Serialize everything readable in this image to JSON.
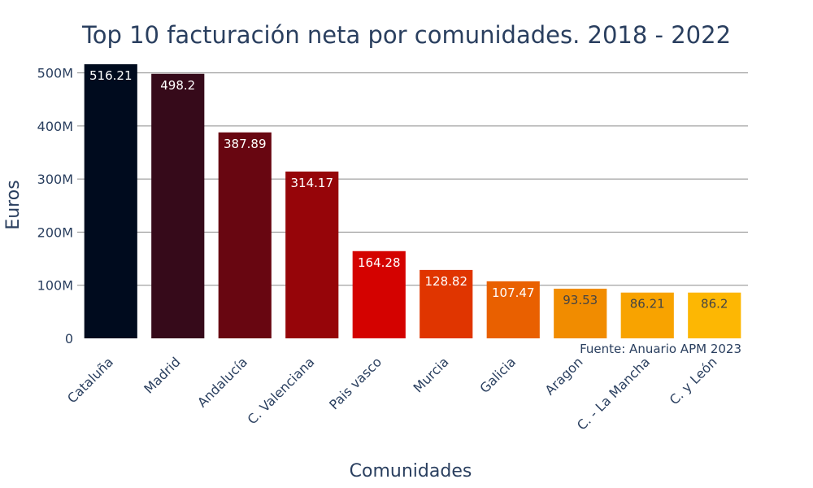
{
  "chart_data": {
    "type": "bar",
    "title": "Top 10 facturación neta por comunidades. 2018 - 2022",
    "xlabel": "Comunidades",
    "ylabel": "Euros",
    "categories": [
      "Cataluña",
      "Madrid",
      "Andalucía",
      "C. Valenciana",
      "Pais vasco",
      "Murcia",
      "Galicia",
      "Aragon",
      "C. - La Mancha",
      "C. y León"
    ],
    "values": [
      516.21,
      498.2,
      387.89,
      314.17,
      164.28,
      128.82,
      107.47,
      93.53,
      86.21,
      86.2
    ],
    "value_labels": [
      "516.21",
      "498.2",
      "387.89",
      "314.17",
      "164.28",
      "128.82",
      "107.47",
      "93.53",
      "86.21",
      "86.2"
    ],
    "colors": [
      "#000b1e",
      "#360a1a",
      "#680611",
      "#960509",
      "#d40200",
      "#e03500",
      "#e96000",
      "#f18c00",
      "#f8a300",
      "#fdb703"
    ],
    "value_label_colors": [
      "#ffffff",
      "#ffffff",
      "#ffffff",
      "#ffffff",
      "#ffffff",
      "#ffffff",
      "#ffffff",
      "#444444",
      "#444444",
      "#444444"
    ],
    "yticks": [
      0,
      100,
      200,
      300,
      400,
      500
    ],
    "ytick_labels": [
      "0",
      "100M",
      "200M",
      "300M",
      "400M",
      "500M"
    ],
    "ylim": [
      0,
      516.21
    ],
    "grid": true,
    "legend": "none",
    "annotation": "Fuente: Anuario APM 2023"
  }
}
